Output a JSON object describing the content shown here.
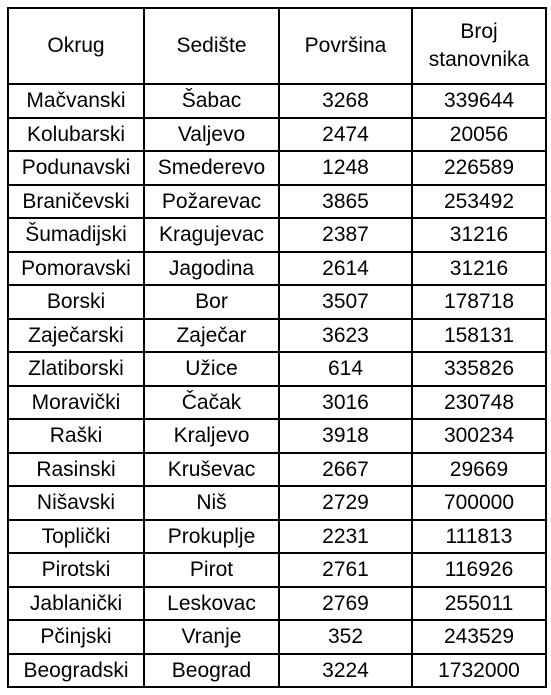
{
  "table": {
    "headers": [
      {
        "lines": [
          "Okrug"
        ]
      },
      {
        "lines": [
          "Sedište"
        ]
      },
      {
        "lines": [
          "Površina"
        ]
      },
      {
        "lines": [
          "Broj",
          "stanovnika"
        ]
      }
    ],
    "rows": [
      [
        "Mačvanski",
        "Šabac",
        "3268",
        "339644"
      ],
      [
        "Kolubarski",
        "Valjevo",
        "2474",
        "20056"
      ],
      [
        "Podunavski",
        "Smederevo",
        "1248",
        "226589"
      ],
      [
        "Braničevski",
        "Požarevac",
        "3865",
        "253492"
      ],
      [
        "Šumadijski",
        "Kragujevac",
        "2387",
        "31216"
      ],
      [
        "Pomoravski",
        "Jagodina",
        "2614",
        "31216"
      ],
      [
        "Borski",
        "Bor",
        "3507",
        "178718"
      ],
      [
        "Zaječarski",
        "Zaječar",
        "3623",
        "158131"
      ],
      [
        "Zlatiborski",
        "Užice",
        "614",
        "335826"
      ],
      [
        "Moravički",
        "Čačak",
        "3016",
        "230748"
      ],
      [
        "Raški",
        "Kraljevo",
        "3918",
        "300234"
      ],
      [
        "Rasinski",
        "Kruševac",
        "2667",
        "29669"
      ],
      [
        "Nišavski",
        "Niš",
        "2729",
        "700000"
      ],
      [
        "Toplički",
        "Prokuplje",
        "2231",
        "111813"
      ],
      [
        "Pirotski",
        "Pirot",
        "2761",
        "116926"
      ],
      [
        "Jablanički",
        "Leskovac",
        "2769",
        "255011"
      ],
      [
        "Pčinjski",
        "Vranje",
        "352",
        "243529"
      ],
      [
        "Beogradski",
        "Beograd",
        "3224",
        "1732000"
      ]
    ]
  }
}
